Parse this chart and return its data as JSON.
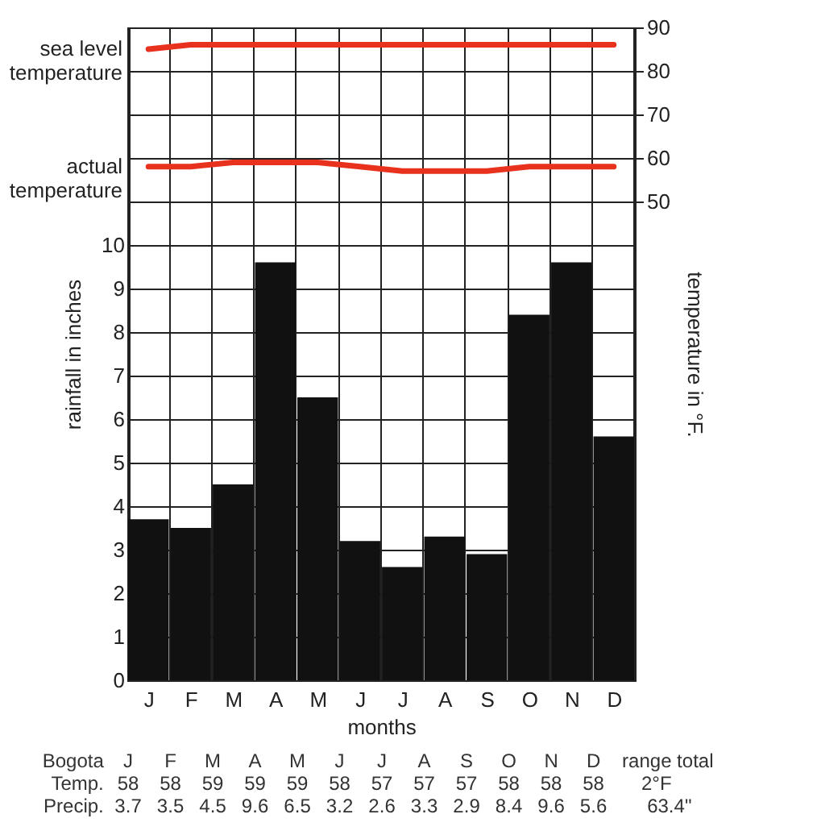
{
  "chart_data": {
    "type": "bar",
    "xlabel": "months",
    "ylabel": "rainfall in inches",
    "y2label": "temperature in °F.",
    "categories": [
      "J",
      "F",
      "M",
      "A",
      "M",
      "J",
      "J",
      "A",
      "S",
      "O",
      "N",
      "D"
    ],
    "series": [
      {
        "color": "#111111",
        "values": [
          3.7,
          3.5,
          4.5,
          9.6,
          6.5,
          3.2,
          2.6,
          3.3,
          2.9,
          8.4,
          9.6,
          5.6
        ],
        "value_labels": [
          "3.7",
          "3.5",
          "4.5",
          "9.6",
          "6.5",
          "3.2",
          "2.6",
          "3.3",
          "2.9",
          "8.4",
          "9.6",
          "5.6"
        ]
      },
      {
        "type": "line",
        "name": "sea level temperature",
        "axis": "y2",
        "color": "#e8321e",
        "values": [
          85,
          86,
          86,
          86,
          86,
          86,
          86,
          86,
          86,
          86,
          86,
          86
        ]
      },
      {
        "type": "line",
        "name": "actual temperature",
        "axis": "y2",
        "color": "#e8321e",
        "values": [
          58,
          58,
          59,
          59,
          59,
          58,
          57,
          57,
          57,
          58,
          58,
          58
        ],
        "value_labels": [
          "58",
          "58",
          "59",
          "59",
          "59",
          "58",
          "57",
          "57",
          "57",
          "58",
          "58",
          "58"
        ]
      }
    ],
    "ylim": [
      0,
      15
    ],
    "yticks": [
      0,
      1,
      2,
      3,
      4,
      5,
      6,
      7,
      8,
      9,
      10
    ],
    "y2lim": [
      -60,
      90
    ],
    "y2ticks": [
      50,
      60,
      70,
      80,
      90
    ],
    "grid": true,
    "annotations": [
      "Bogota",
      "range",
      "total",
      "Temp.",
      "2°F",
      "Precip.",
      "63.4\""
    ]
  }
}
